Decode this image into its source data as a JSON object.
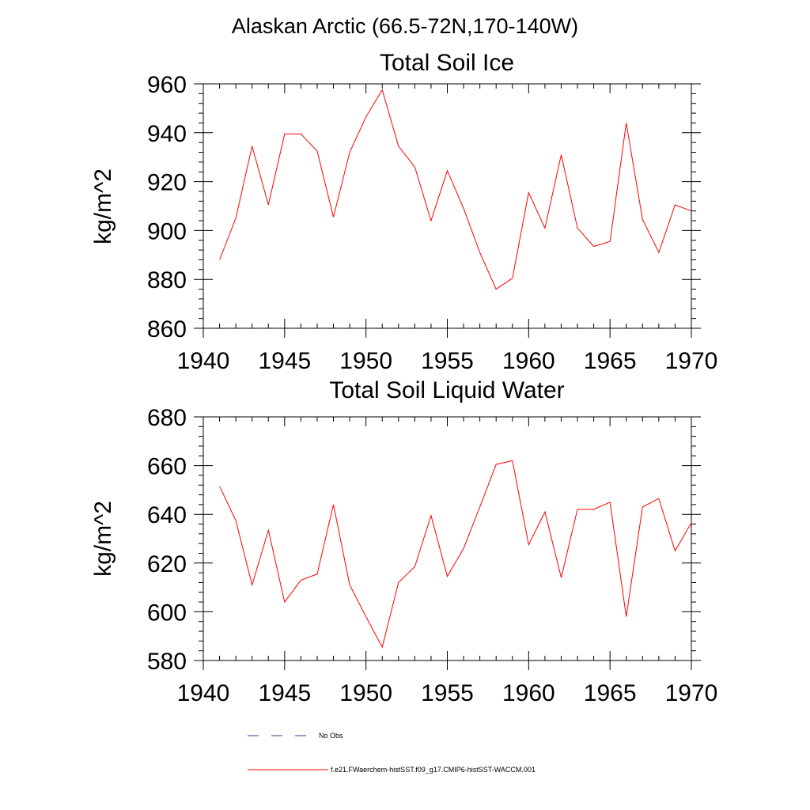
{
  "figure": {
    "title": "Alaskan Arctic (66.5-72N,170-140W)",
    "series_color": "#ff0000",
    "obs_color": "#3b3b8f"
  },
  "legend": {
    "obs_label": "No Obs",
    "model_label": "f.e21.FWaerchem-histSST.f09_g17.CMIP6-histSST-WACCM.001"
  },
  "chart_data": [
    {
      "type": "line",
      "title": "Total Soil Ice",
      "xlabel": "",
      "ylabel": "kg/m^2",
      "xlim": [
        1940,
        1970
      ],
      "ylim": [
        860,
        960
      ],
      "xticks": [
        1940,
        1945,
        1950,
        1955,
        1960,
        1965,
        1970
      ],
      "yticks": [
        860,
        880,
        900,
        920,
        940,
        960
      ],
      "grid": false,
      "series": [
        {
          "x": [
            1941,
            1942,
            1943,
            1944,
            1945,
            1946,
            1947,
            1948,
            1949,
            1950,
            1951,
            1952,
            1953,
            1954,
            1955,
            1956,
            1957,
            1958,
            1959,
            1960,
            1961,
            1962,
            1963,
            1964,
            1965,
            1966,
            1967,
            1968,
            1969,
            1970
          ],
          "values": [
            888,
            905,
            934.5,
            910.5,
            939.5,
            939.5,
            932.5,
            905.5,
            932,
            946.5,
            957.5,
            934.5,
            926,
            904,
            924.5,
            909,
            891,
            876,
            880.5,
            915.5,
            901,
            931,
            901,
            893.5,
            895.5,
            944,
            904.5,
            891,
            910.5,
            908
          ]
        }
      ]
    },
    {
      "type": "line",
      "title": "Total Soil Liquid Water",
      "xlabel": "",
      "ylabel": "kg/m^2",
      "xlim": [
        1940,
        1970
      ],
      "ylim": [
        580,
        680
      ],
      "xticks": [
        1940,
        1945,
        1950,
        1955,
        1960,
        1965,
        1970
      ],
      "yticks": [
        580,
        600,
        620,
        640,
        660,
        680
      ],
      "grid": false,
      "series": [
        {
          "x": [
            1941,
            1942,
            1943,
            1944,
            1945,
            1946,
            1947,
            1948,
            1949,
            1950,
            1951,
            1952,
            1953,
            1954,
            1955,
            1956,
            1957,
            1958,
            1959,
            1960,
            1961,
            1962,
            1963,
            1964,
            1965,
            1966,
            1967,
            1968,
            1969,
            1970
          ],
          "values": [
            651.5,
            637.5,
            611,
            633.5,
            604,
            613,
            615.5,
            644,
            611,
            598,
            585.5,
            612,
            618.5,
            639.5,
            614.5,
            626,
            643,
            660.5,
            662,
            627.5,
            641,
            614,
            642,
            642,
            645,
            598,
            643,
            646.5,
            625,
            636.5
          ]
        }
      ]
    }
  ]
}
